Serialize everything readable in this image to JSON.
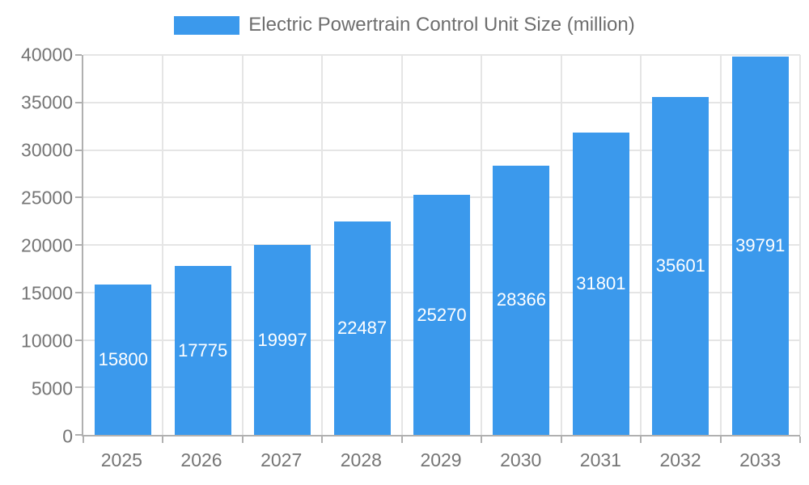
{
  "chart_data": {
    "type": "bar",
    "title": "Electric Powertrain Control Unit Size (million)",
    "legend_position": "top",
    "categories": [
      "2025",
      "2026",
      "2027",
      "2028",
      "2029",
      "2030",
      "2031",
      "2032",
      "2033"
    ],
    "series": [
      {
        "name": "Electric Powertrain Control Unit Size (million)",
        "values": [
          15800,
          17775,
          19997,
          22487,
          25270,
          28366,
          31801,
          35601,
          39791
        ]
      }
    ],
    "bar_value_labels": [
      "15800",
      "17775",
      "19997",
      "22487",
      "25270",
      "28366",
      "31801",
      "35601",
      "39791"
    ],
    "xlabel": "",
    "ylabel": "",
    "ylim": [
      0,
      40000
    ],
    "yticks": [
      0,
      5000,
      10000,
      15000,
      20000,
      25000,
      30000,
      35000,
      40000
    ],
    "ytick_labels": [
      "0",
      "5000",
      "10000",
      "15000",
      "20000",
      "25000",
      "30000",
      "35000",
      "40000"
    ],
    "grid": true,
    "colors": {
      "bar": "#3b99ec",
      "bar_label_text": "#ffffff",
      "gridline": "#e5e5e5",
      "axis_line": "#b0b0b0",
      "tick_text": "#757575",
      "legend_text": "#6e6e6e"
    }
  }
}
